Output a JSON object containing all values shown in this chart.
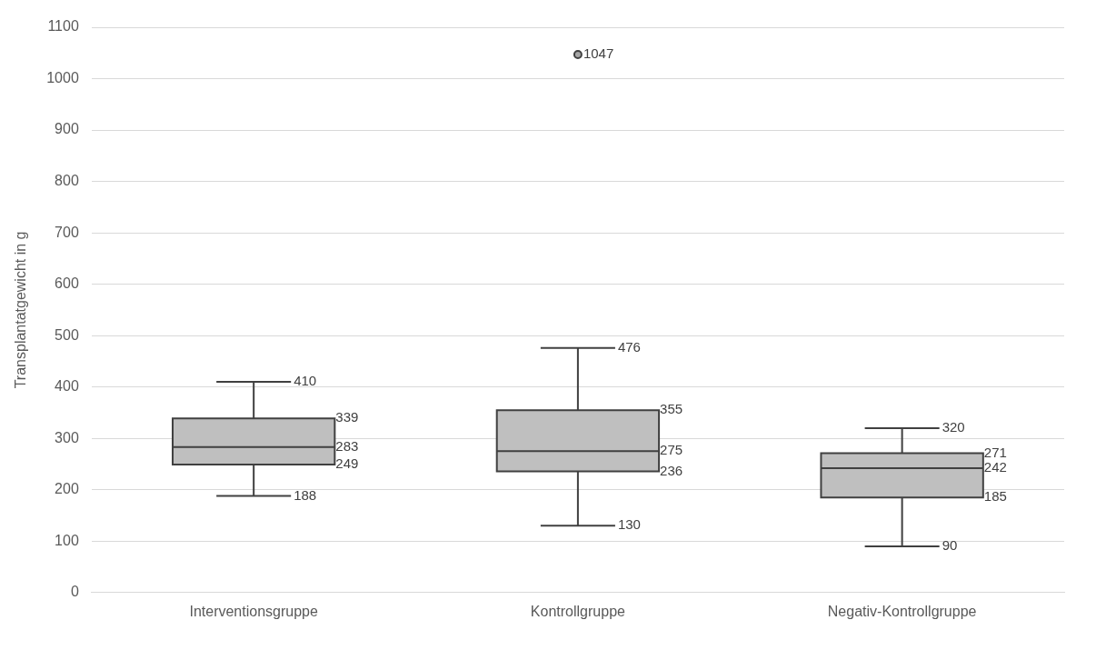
{
  "chart_data": {
    "type": "box",
    "ylabel": "Transplantatgewicht in g",
    "categories": [
      "Interventionsgruppe",
      "Kontrollgruppe",
      "Negativ-Kontrollgruppe"
    ],
    "boxes": [
      {
        "low": 188,
        "q1": 249,
        "median": 283,
        "q3": 339,
        "high": 410
      },
      {
        "low": 130,
        "q1": 236,
        "median": 275,
        "q3": 355,
        "high": 476,
        "outliers": [
          1047
        ]
      },
      {
        "low": 90,
        "q1": 185,
        "median": 242,
        "q3": 271,
        "high": 320
      }
    ],
    "color": "#bfbfbf",
    "ylim": [
      0,
      1100
    ],
    "yticks": [
      0,
      100,
      200,
      300,
      400,
      500,
      600,
      700,
      800,
      900,
      1000,
      1100
    ],
    "grid": "y",
    "legend": false,
    "marker": "circle",
    "annotations": [
      {
        "text": "410",
        "x": "Interventionsgruppe",
        "y": 410
      },
      "339",
      "283",
      "249",
      {
        "text": "188",
        "x": "Interventionsgruppe",
        "y": 188
      },
      "1047",
      {
        "text": "476",
        "x": "Kontrollgruppe",
        "y": 476
      },
      "355",
      "275",
      "236",
      {
        "text": "130",
        "x": "Kontrollgruppe",
        "y": 130
      },
      {
        "text": "320",
        "x": "Negativ-Kontrollgruppe",
        "y": 320
      },
      "271",
      "242",
      "185",
      {
        "text": "90",
        "x": "Negativ-Kontrollgruppe",
        "y": 90
      }
    ]
  }
}
